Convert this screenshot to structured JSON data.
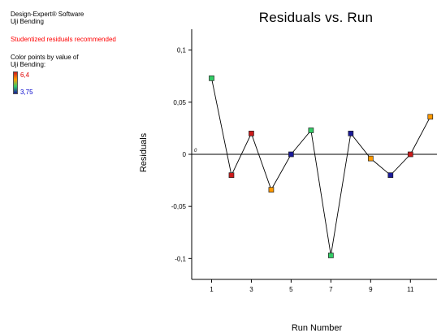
{
  "sidebar": {
    "software": "Design-Expert® Software",
    "response": "Uji Bending",
    "warning": "Studentized residuals recommended",
    "color_by_line1": "Color points by value of",
    "color_by_line2": "Uji Bending:",
    "legend_high": "6,4",
    "legend_low": "3,75"
  },
  "colors": {
    "red": "#cc1a1a",
    "orange": "#ff9900",
    "green": "#33cc66",
    "blue": "#1a1a99",
    "warning": "#ff0000"
  },
  "chart_data": {
    "type": "line",
    "title": "Residuals vs. Run",
    "xlabel": "Run Number",
    "ylabel": "Residuals",
    "xlim": [
      0,
      12.5
    ],
    "ylim": [
      -0.12,
      0.12
    ],
    "x_ticks": [
      1,
      3,
      5,
      7,
      9,
      11
    ],
    "x_tick_labels": [
      "1",
      "3",
      "5",
      "7",
      "9",
      "11"
    ],
    "y_ticks": [
      0.1,
      0.05,
      0,
      -0.05,
      -0.1
    ],
    "y_tick_labels": [
      "0,1",
      "0,05",
      "0",
      "-0,05",
      "-0,1"
    ],
    "reference_line": 0,
    "reference_label": "0",
    "points": [
      {
        "x": 1,
        "y": 0.073,
        "color": "green"
      },
      {
        "x": 2,
        "y": -0.02,
        "color": "red"
      },
      {
        "x": 3,
        "y": 0.02,
        "color": "red"
      },
      {
        "x": 4,
        "y": -0.034,
        "color": "orange"
      },
      {
        "x": 5,
        "y": 0.0,
        "color": "blue"
      },
      {
        "x": 6,
        "y": 0.023,
        "color": "green"
      },
      {
        "x": 7,
        "y": -0.097,
        "color": "green"
      },
      {
        "x": 8,
        "y": 0.02,
        "color": "blue"
      },
      {
        "x": 9,
        "y": -0.004,
        "color": "orange"
      },
      {
        "x": 10,
        "y": -0.02,
        "color": "blue"
      },
      {
        "x": 11,
        "y": 0.0,
        "color": "red"
      },
      {
        "x": 12,
        "y": 0.036,
        "color": "orange"
      }
    ]
  }
}
